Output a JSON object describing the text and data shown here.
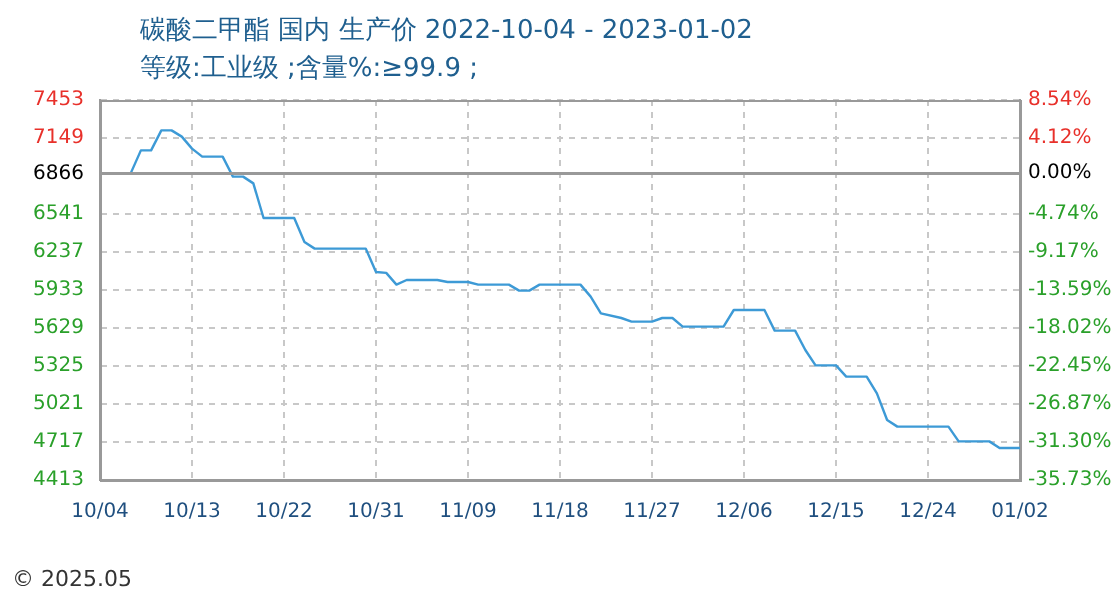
{
  "chart_data": {
    "type": "line",
    "title": "碳酸二甲酯 国内 生产价 2022-10-04 - 2023-01-02",
    "subtitle": "等级:工业级 ;含量%:≥99.9 ;",
    "annotations": [
      "© 2025.05"
    ],
    "x": [
      "2022-10-04",
      "2022-10-07",
      "2022-10-08",
      "2022-10-09",
      "2022-10-10",
      "2022-10-11",
      "2022-10-12",
      "2022-10-13",
      "2022-10-14",
      "2022-10-16",
      "2022-10-17",
      "2022-10-18",
      "2022-10-19",
      "2022-10-20",
      "2022-10-23",
      "2022-10-24",
      "2022-10-25",
      "2022-10-30",
      "2022-10-31",
      "2022-11-01",
      "2022-11-02",
      "2022-11-03",
      "2022-11-06",
      "2022-11-07",
      "2022-11-09",
      "2022-11-10",
      "2022-11-13",
      "2022-11-14",
      "2022-11-15",
      "2022-11-16",
      "2022-11-20",
      "2022-11-21",
      "2022-11-22",
      "2022-11-24",
      "2022-11-25",
      "2022-11-27",
      "2022-11-28",
      "2022-11-29",
      "2022-11-30",
      "2022-12-04",
      "2022-12-05",
      "2022-12-08",
      "2022-12-09",
      "2022-12-11",
      "2022-12-12",
      "2022-12-13",
      "2022-12-15",
      "2022-12-16",
      "2022-12-18",
      "2022-12-19",
      "2022-12-20",
      "2022-12-21",
      "2022-12-26",
      "2022-12-27",
      "2022-12-30",
      "2022-12-31",
      "2023-01-02"
    ],
    "series": [
      {
        "color": "#3d9ad6",
        "values": [
          6866,
          6866,
          7050,
          7050,
          7210,
          7210,
          7160,
          7064,
          7000,
          7000,
          6840,
          6840,
          6786,
          6509,
          6509,
          6317,
          6264,
          6264,
          6077,
          6070,
          5976,
          6013,
          6013,
          5997,
          5997,
          5976,
          5976,
          5928,
          5928,
          5976,
          5976,
          5880,
          5746,
          5709,
          5680,
          5680,
          5709,
          5709,
          5640,
          5640,
          5773,
          5773,
          5608,
          5608,
          5453,
          5330,
          5330,
          5240,
          5240,
          5106,
          4893,
          4840,
          4840,
          4722,
          4722,
          4669,
          4669
        ]
      }
    ],
    "ylim": [
      4413,
      7453
    ],
    "yticks": [
      4413,
      4717,
      5021,
      5325,
      5629,
      5933,
      6237,
      6541,
      6866,
      7149,
      7453
    ],
    "y2lim": [
      -35.73,
      8.54
    ],
    "y2ticks": [
      {
        "value": -35.73,
        "label": "-35.73%"
      },
      {
        "value": -31.3,
        "label": "-31.30%"
      },
      {
        "value": -26.87,
        "label": "-26.87%"
      },
      {
        "value": -22.45,
        "label": "-22.45%"
      },
      {
        "value": -18.02,
        "label": "-18.02%"
      },
      {
        "value": -13.59,
        "label": "-13.59%"
      },
      {
        "value": -9.17,
        "label": "-9.17%"
      },
      {
        "value": -4.74,
        "label": "-4.74%"
      },
      {
        "value": 0,
        "label": "0.00%"
      },
      {
        "value": 4.12,
        "label": "4.12%"
      },
      {
        "value": 8.54,
        "label": "8.54%"
      }
    ],
    "xlim": [
      "2022-10-04",
      "2023-01-02"
    ],
    "xticks": [
      {
        "value": "2022-10-04",
        "label": "10/04"
      },
      {
        "value": "2022-10-13",
        "label": "10/13"
      },
      {
        "value": "2022-10-22",
        "label": "10/22"
      },
      {
        "value": "2022-10-31",
        "label": "10/31"
      },
      {
        "value": "2022-11-09",
        "label": "11/09"
      },
      {
        "value": "2022-11-18",
        "label": "11/18"
      },
      {
        "value": "2022-11-27",
        "label": "11/27"
      },
      {
        "value": "2022-12-06",
        "label": "12/06"
      },
      {
        "value": "2022-12-15",
        "label": "12/15"
      },
      {
        "value": "2022-12-24",
        "label": "12/24"
      },
      {
        "value": "2023-01-02",
        "label": "01/02"
      }
    ],
    "ref_lines": [
      {
        "axis": "y",
        "value": 6866,
        "color": "#999999"
      }
    ],
    "grid": true,
    "legend": false,
    "marker": "none",
    "line_style": "solid"
  }
}
